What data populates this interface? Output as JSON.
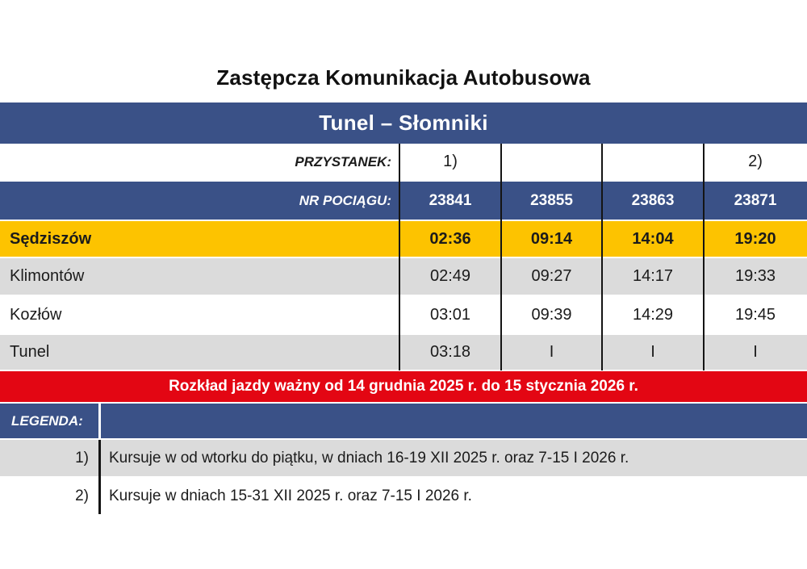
{
  "title": "Zastępcza Komunikacja Autobusowa",
  "route": "Tunel – Słomniki",
  "table": {
    "stop_label": "PRZYSTANEK:",
    "train_label": "NR POCIĄGU:",
    "stop_notes": [
      "1)",
      "",
      "",
      "2)"
    ],
    "train_numbers": [
      "23841",
      "23855",
      "23863",
      "23871"
    ],
    "rows": [
      {
        "station": "Sędziszów",
        "times": [
          "02:36",
          "09:14",
          "14:04",
          "19:20"
        ]
      },
      {
        "station": "Klimontów",
        "times": [
          "02:49",
          "09:27",
          "14:17",
          "19:33"
        ]
      },
      {
        "station": "Kozłów",
        "times": [
          "03:01",
          "09:39",
          "14:29",
          "19:45"
        ]
      },
      {
        "station": "Tunel",
        "times": [
          "03:18",
          "I",
          "I",
          "I"
        ]
      }
    ]
  },
  "validity": "Rozkład jazdy ważny od 14 grudnia 2025 r. do 15 stycznia 2026 r.",
  "legend": {
    "label": "LEGENDA:",
    "items": [
      {
        "ref": "1)",
        "text": "Kursuje w od wtorku do piątku, w dniach 16-19 XII 2025 r. oraz 7-15 I 2026 r."
      },
      {
        "ref": "2)",
        "text": "Kursuje w dniach 15-31 XII 2025 r. oraz 7-15 I 2026 r."
      }
    ]
  },
  "colors": {
    "blue": "#3A5187",
    "yellow": "#FDC300",
    "red": "#E30613",
    "gray": "#DBDBDB"
  }
}
